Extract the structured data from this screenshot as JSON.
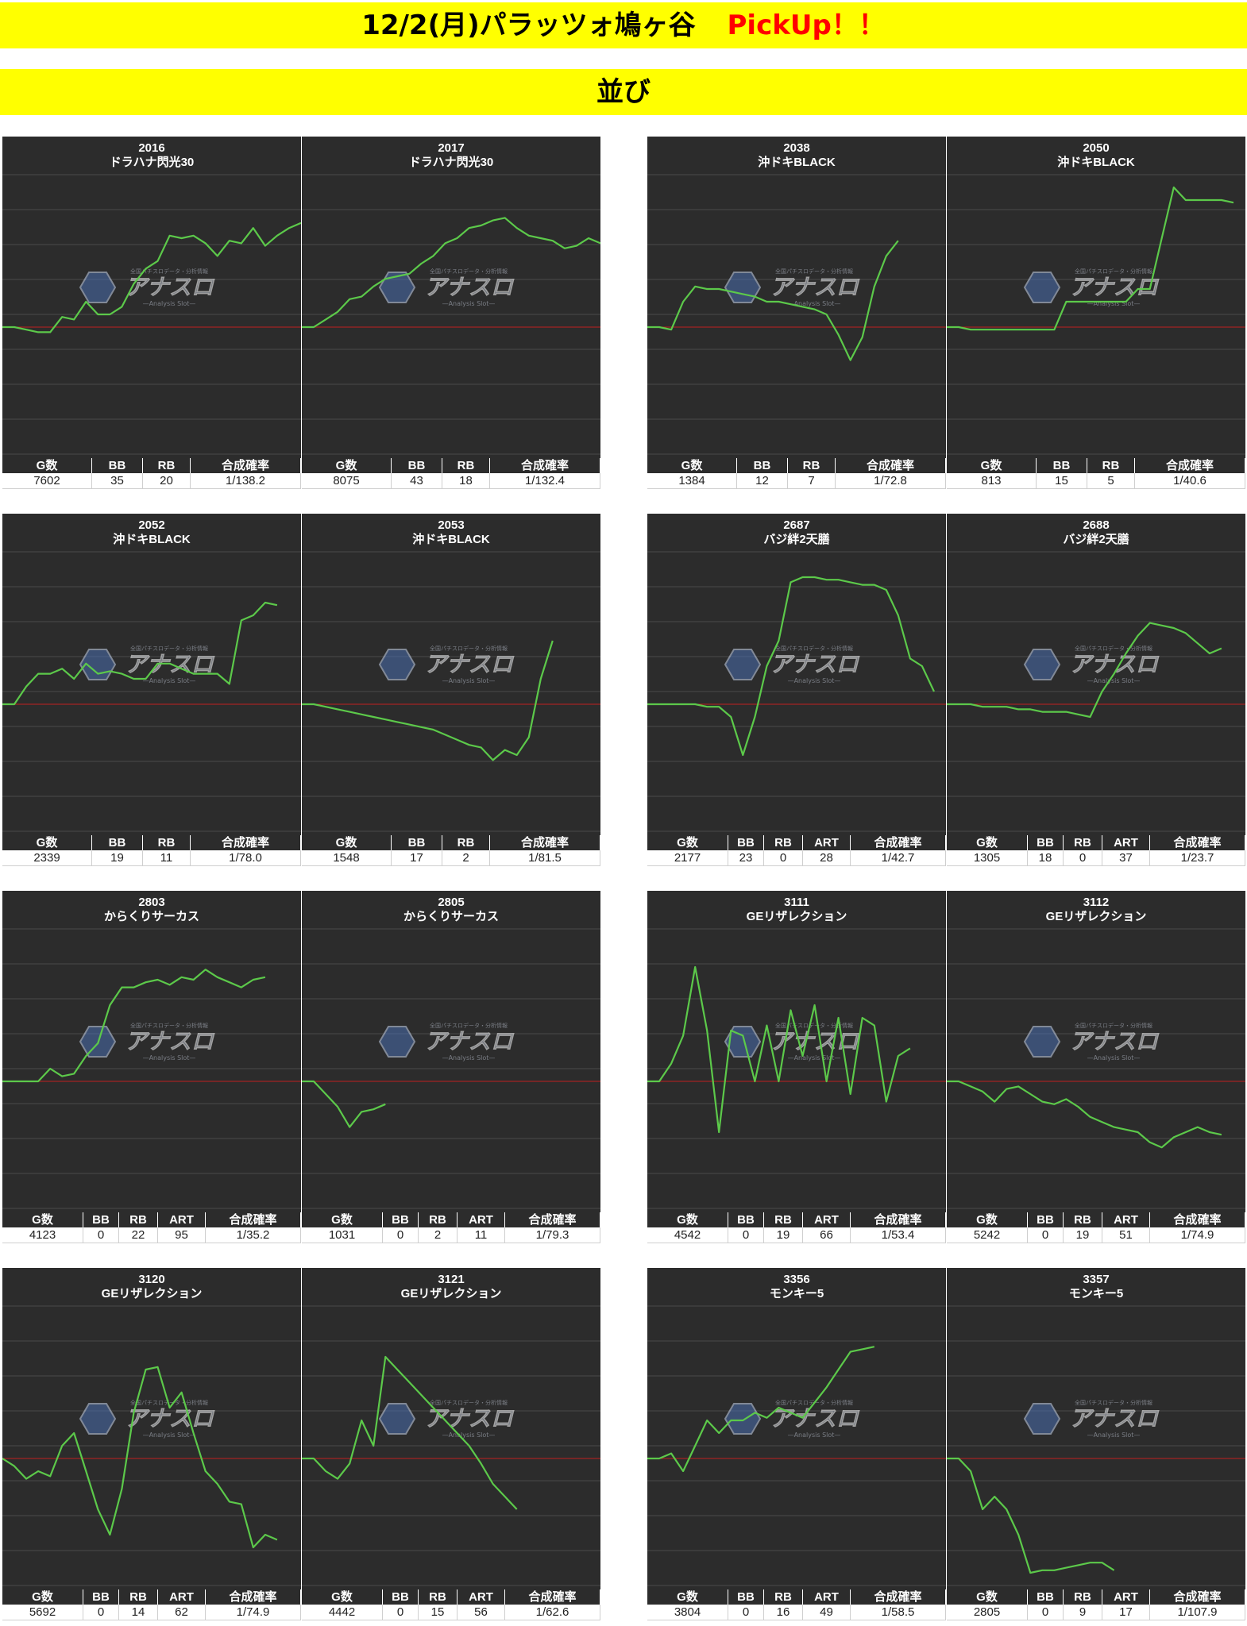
{
  "header": {
    "title": "12/2(月)パラッツォ鳩ヶ谷",
    "pickup": "PickUp！！",
    "subtitle": "並び"
  },
  "colors": {
    "banner": "#ffff00",
    "pickup": "#ff0000",
    "chart_bg": "#2c2c2c",
    "line": "#5cc94a",
    "zero_line": "#c02020"
  },
  "watermark": {
    "text": "アナスロ",
    "sub": "—Analysis Slot—",
    "top": "全国パチスロデータ・分析情報"
  },
  "chart_data": [
    {
      "type": "line",
      "machine_no": "2016",
      "machine_name": "ドラハナ閃光30",
      "headers": [
        "G数",
        "BB",
        "RB",
        "合成確率"
      ],
      "stats": [
        "7602",
        "35",
        "20",
        "1/138.2"
      ],
      "values": [
        0,
        0,
        -1,
        -2,
        -2,
        4,
        3,
        10,
        5,
        5,
        8,
        17,
        23,
        26,
        36,
        35,
        36,
        33,
        28,
        34,
        33,
        39,
        32,
        36,
        39,
        41
      ]
    },
    {
      "type": "line",
      "machine_no": "2017",
      "machine_name": "ドラハナ閃光30",
      "headers": [
        "G数",
        "BB",
        "RB",
        "合成確率"
      ],
      "stats": [
        "8075",
        "43",
        "18",
        "1/132.4"
      ],
      "values": [
        0,
        0,
        3,
        6,
        11,
        12,
        16,
        19,
        20,
        21,
        25,
        28,
        33,
        35,
        39,
        40,
        42,
        43,
        39,
        36,
        35,
        34,
        31,
        32,
        35,
        33
      ]
    },
    {
      "type": "line",
      "machine_no": "2038",
      "machine_name": "沖ドキBLACK",
      "headers": [
        "G数",
        "BB",
        "RB",
        "合成確率"
      ],
      "stats": [
        "1384",
        "12",
        "7",
        "1/72.8"
      ],
      "values": [
        0,
        0,
        -1,
        10,
        16,
        15,
        15,
        14,
        13,
        12,
        10,
        10,
        9,
        8,
        7,
        5,
        -3,
        -13,
        -4,
        16,
        28,
        34
      ]
    },
    {
      "type": "line",
      "machine_no": "2050",
      "machine_name": "沖ドキBLACK",
      "headers": [
        "G数",
        "BB",
        "RB",
        "合成確率"
      ],
      "stats": [
        "813",
        "15",
        "5",
        "1/40.6"
      ],
      "values": [
        0,
        0,
        -1,
        -1,
        -1,
        -1,
        -1,
        -1,
        -1,
        -1,
        10,
        10,
        10,
        10,
        10,
        10,
        15,
        15,
        35,
        55,
        50,
        50,
        50,
        50,
        49
      ]
    },
    {
      "type": "line",
      "machine_no": "2052",
      "machine_name": "沖ドキBLACK",
      "headers": [
        "G数",
        "BB",
        "RB",
        "合成確率"
      ],
      "stats": [
        "2339",
        "19",
        "11",
        "1/78.0"
      ],
      "values": [
        0,
        0,
        7,
        12,
        12,
        14,
        10,
        16,
        12,
        13,
        12,
        10,
        10,
        16,
        16,
        14,
        12,
        12,
        12,
        8,
        33,
        35,
        40,
        39
      ]
    },
    {
      "type": "line",
      "machine_no": "2053",
      "machine_name": "沖ドキBLACK",
      "headers": [
        "G数",
        "BB",
        "RB",
        "合成確率"
      ],
      "stats": [
        "1548",
        "17",
        "2",
        "1/81.5"
      ],
      "values": [
        0,
        0,
        -1,
        -2,
        -3,
        -4,
        -5,
        -6,
        -7,
        -8,
        -9,
        -10,
        -12,
        -14,
        -16,
        -17,
        -22,
        -18,
        -20,
        -13,
        10,
        25
      ]
    },
    {
      "type": "line",
      "machine_no": "2687",
      "machine_name": "バジ絆2天膳",
      "headers": [
        "G数",
        "BB",
        "RB",
        "ART",
        "合成確率"
      ],
      "stats": [
        "2177",
        "23",
        "0",
        "28",
        "1/42.7"
      ],
      "values": [
        0,
        0,
        0,
        0,
        0,
        -1,
        -1,
        -5,
        -20,
        -5,
        15,
        25,
        48,
        50,
        50,
        49,
        49,
        48,
        47,
        47,
        45,
        35,
        18,
        15,
        5
      ]
    },
    {
      "type": "line",
      "machine_no": "2688",
      "machine_name": "バジ絆2天膳",
      "headers": [
        "G数",
        "BB",
        "RB",
        "ART",
        "合成確率"
      ],
      "stats": [
        "1305",
        "18",
        "0",
        "37",
        "1/23.7"
      ],
      "values": [
        0,
        0,
        0,
        -1,
        -1,
        -1,
        -2,
        -2,
        -3,
        -3,
        -3,
        -4,
        -5,
        5,
        12,
        20,
        27,
        32,
        31,
        30,
        28,
        24,
        20,
        22
      ]
    },
    {
      "type": "line",
      "machine_no": "2803",
      "machine_name": "からくりサーカス",
      "headers": [
        "G数",
        "BB",
        "RB",
        "ART",
        "合成確率"
      ],
      "stats": [
        "4123",
        "0",
        "22",
        "95",
        "1/35.2"
      ],
      "values": [
        0,
        0,
        0,
        0,
        5,
        2,
        3,
        10,
        15,
        30,
        37,
        37,
        39,
        40,
        38,
        41,
        40,
        44,
        41,
        39,
        37,
        40,
        41
      ]
    },
    {
      "type": "line",
      "machine_no": "2805",
      "machine_name": "からくりサーカス",
      "headers": [
        "G数",
        "BB",
        "RB",
        "ART",
        "合成確率"
      ],
      "stats": [
        "1031",
        "0",
        "2",
        "11",
        "1/79.3"
      ],
      "values": [
        0,
        0,
        -5,
        -10,
        -18,
        -12,
        -11,
        -9
      ]
    },
    {
      "type": "line",
      "machine_no": "3111",
      "machine_name": "GEリザレクション",
      "headers": [
        "G数",
        "BB",
        "RB",
        "ART",
        "合成確率"
      ],
      "stats": [
        "4542",
        "0",
        "19",
        "66",
        "1/53.4"
      ],
      "values": [
        0,
        0,
        7,
        18,
        45,
        20,
        -20,
        20,
        18,
        0,
        22,
        0,
        28,
        10,
        30,
        0,
        25,
        -5,
        25,
        22,
        -8,
        10,
        13
      ]
    },
    {
      "type": "line",
      "machine_no": "3112",
      "machine_name": "GEリザレクション",
      "headers": [
        "G数",
        "BB",
        "RB",
        "ART",
        "合成確率"
      ],
      "stats": [
        "5242",
        "0",
        "19",
        "51",
        "1/74.9"
      ],
      "values": [
        0,
        0,
        -2,
        -4,
        -8,
        -3,
        -2,
        -5,
        -8,
        -9,
        -7,
        -10,
        -14,
        -16,
        -18,
        -19,
        -20,
        -24,
        -26,
        -22,
        -20,
        -18,
        -20,
        -21
      ]
    },
    {
      "type": "line",
      "machine_no": "3120",
      "machine_name": "GEリザレクション",
      "headers": [
        "G数",
        "BB",
        "RB",
        "ART",
        "合成確率"
      ],
      "stats": [
        "5692",
        "0",
        "14",
        "62",
        "1/74.9"
      ],
      "values": [
        0,
        -3,
        -8,
        -5,
        -7,
        5,
        10,
        -5,
        -20,
        -30,
        -12,
        18,
        35,
        36,
        20,
        26,
        10,
        -5,
        -10,
        -17,
        -18,
        -35,
        -30,
        -32
      ]
    },
    {
      "type": "line",
      "machine_no": "3121",
      "machine_name": "GEリザレクション",
      "headers": [
        "G数",
        "BB",
        "RB",
        "ART",
        "合成確率"
      ],
      "stats": [
        "4442",
        "0",
        "15",
        "56",
        "1/62.6"
      ],
      "values": [
        0,
        0,
        -5,
        -8,
        -2,
        15,
        5,
        40,
        35,
        30,
        25,
        20,
        15,
        10,
        5,
        -2,
        -10,
        -15,
        -20
      ]
    },
    {
      "type": "line",
      "machine_no": "3356",
      "machine_name": "モンキー5",
      "headers": [
        "G数",
        "BB",
        "RB",
        "ART",
        "合成確率"
      ],
      "stats": [
        "3804",
        "0",
        "16",
        "49",
        "1/58.5"
      ],
      "values": [
        0,
        0,
        2,
        -5,
        5,
        15,
        10,
        15,
        15,
        18,
        16,
        20,
        18,
        16,
        22,
        28,
        35,
        42,
        43,
        44
      ]
    },
    {
      "type": "line",
      "machine_no": "3357",
      "machine_name": "モンキー5",
      "headers": [
        "G数",
        "BB",
        "RB",
        "ART",
        "合成確率"
      ],
      "stats": [
        "2805",
        "0",
        "9",
        "17",
        "1/107.9"
      ],
      "values": [
        0,
        0,
        -5,
        -20,
        -15,
        -20,
        -30,
        -45,
        -44,
        -44,
        -43,
        -42,
        -41,
        -41,
        -44
      ]
    }
  ]
}
